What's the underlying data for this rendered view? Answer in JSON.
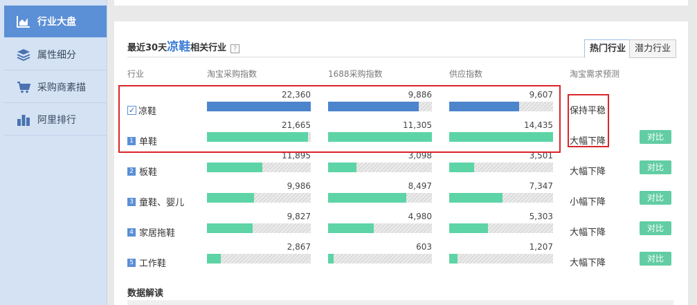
{
  "sidebar": {
    "items": [
      {
        "label": "行业大盘",
        "icon": "area-chart-icon",
        "active": true
      },
      {
        "label": "属性细分",
        "icon": "layers-icon",
        "active": false
      },
      {
        "label": "采购商素描",
        "icon": "cart-icon",
        "active": false
      },
      {
        "label": "阿里排行",
        "icon": "bar-chart-icon",
        "active": false
      }
    ]
  },
  "panel": {
    "title_prefix": "最近30天",
    "title_keyword": "凉鞋",
    "title_suffix": "相关行业",
    "help_icon": "?",
    "tabs": [
      {
        "label": "热门行业",
        "active": true
      },
      {
        "label": "潜力行业",
        "active": false
      }
    ],
    "headers": {
      "industry": "行业",
      "taobao_index": "淘宝采购指数",
      "index_1688": "1688采购指数",
      "supply_index": "供应指数",
      "forecast": "淘宝需求预测"
    },
    "rows": [
      {
        "rank": "",
        "checked": true,
        "name": "凉鞋",
        "taobao": "22,360",
        "taobao_pct": 1.0,
        "i1688": "9,886",
        "i1688_pct": 0.87,
        "supply": "9,607",
        "supply_pct": 0.67,
        "forecast": "保持平稳",
        "compare": "",
        "color": "blue"
      },
      {
        "rank": "1",
        "checked": false,
        "name": "单鞋",
        "taobao": "21,665",
        "taobao_pct": 0.97,
        "i1688": "11,305",
        "i1688_pct": 1.0,
        "supply": "14,435",
        "supply_pct": 1.0,
        "forecast": "大幅下降",
        "compare": "对比",
        "color": "green"
      },
      {
        "rank": "2",
        "checked": false,
        "name": "板鞋",
        "taobao": "11,895",
        "taobao_pct": 0.53,
        "i1688": "3,098",
        "i1688_pct": 0.27,
        "supply": "3,501",
        "supply_pct": 0.24,
        "forecast": "大幅下降",
        "compare": "对比",
        "color": "green"
      },
      {
        "rank": "3",
        "checked": false,
        "name": "童鞋、婴儿",
        "taobao": "9,986",
        "taobao_pct": 0.45,
        "i1688": "8,497",
        "i1688_pct": 0.75,
        "supply": "7,347",
        "supply_pct": 0.51,
        "forecast": "小幅下降",
        "compare": "对比",
        "color": "green"
      },
      {
        "rank": "4",
        "checked": false,
        "name": "家居拖鞋",
        "taobao": "9,827",
        "taobao_pct": 0.44,
        "i1688": "4,980",
        "i1688_pct": 0.44,
        "supply": "5,303",
        "supply_pct": 0.37,
        "forecast": "大幅下降",
        "compare": "对比",
        "color": "green"
      },
      {
        "rank": "5",
        "checked": false,
        "name": "工作鞋",
        "taobao": "2,867",
        "taobao_pct": 0.13,
        "i1688": "603",
        "i1688_pct": 0.05,
        "supply": "1,207",
        "supply_pct": 0.08,
        "forecast": "大幅下降",
        "compare": "对比",
        "color": "green"
      }
    ],
    "analysis_title": "数据解读"
  },
  "colors": {
    "accent": "#5b8fd6",
    "bar_blue": "#4d85cd",
    "bar_green": "#5dd4a6",
    "highlight_red": "#d9242a"
  }
}
